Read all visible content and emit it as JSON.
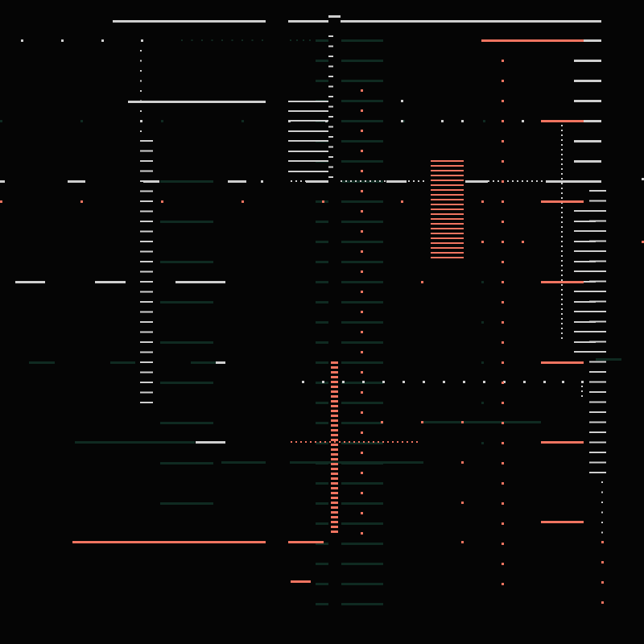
{
  "palette": {
    "background": "#050505",
    "light": "#cfcfcf",
    "coral": "#f07460",
    "dim": "#0f2a21"
  },
  "description_elements": [
    "light-bars",
    "coral-bars",
    "dim-green-bars",
    "dotted-lines",
    "coral-ladder",
    "coral-dashed-column"
  ]
}
